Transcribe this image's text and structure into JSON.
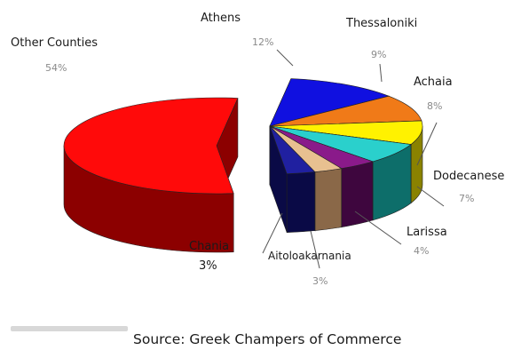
{
  "chart_data": {
    "type": "pie",
    "title": "",
    "slices": [
      {
        "label": "Athens",
        "value": 12,
        "value_text": "12%",
        "color": "#1010e0",
        "side": "#06066e"
      },
      {
        "label": "Thessaloniki",
        "value": 9,
        "value_text": "9%",
        "color": "#f07a18",
        "side": "#8a3e06"
      },
      {
        "label": "Achaia",
        "value": 8,
        "value_text": "8%",
        "color": "#fff200",
        "side": "#8a8200"
      },
      {
        "label": "Dodecanese",
        "value": 7,
        "value_text": "7%",
        "color": "#2ad0cc",
        "side": "#0d6e6a"
      },
      {
        "label": "Larissa",
        "value": 4,
        "value_text": "4%",
        "color": "#8a1a8a",
        "side": "#3e063e"
      },
      {
        "label": "Aitoloakarnania",
        "value": 3,
        "value_text": "3%",
        "color": "#e8c090",
        "side": "#8a6848"
      },
      {
        "label": "Chania",
        "value": 3,
        "value_text": "3%",
        "color": "#2020a0",
        "side": "#0a0a46"
      },
      {
        "label": "Other Counties",
        "value": 54,
        "value_text": "54%",
        "color": "#ff0a0a",
        "side": "#8c0000"
      }
    ]
  },
  "source": "Source: Greek Champers of Commerce"
}
